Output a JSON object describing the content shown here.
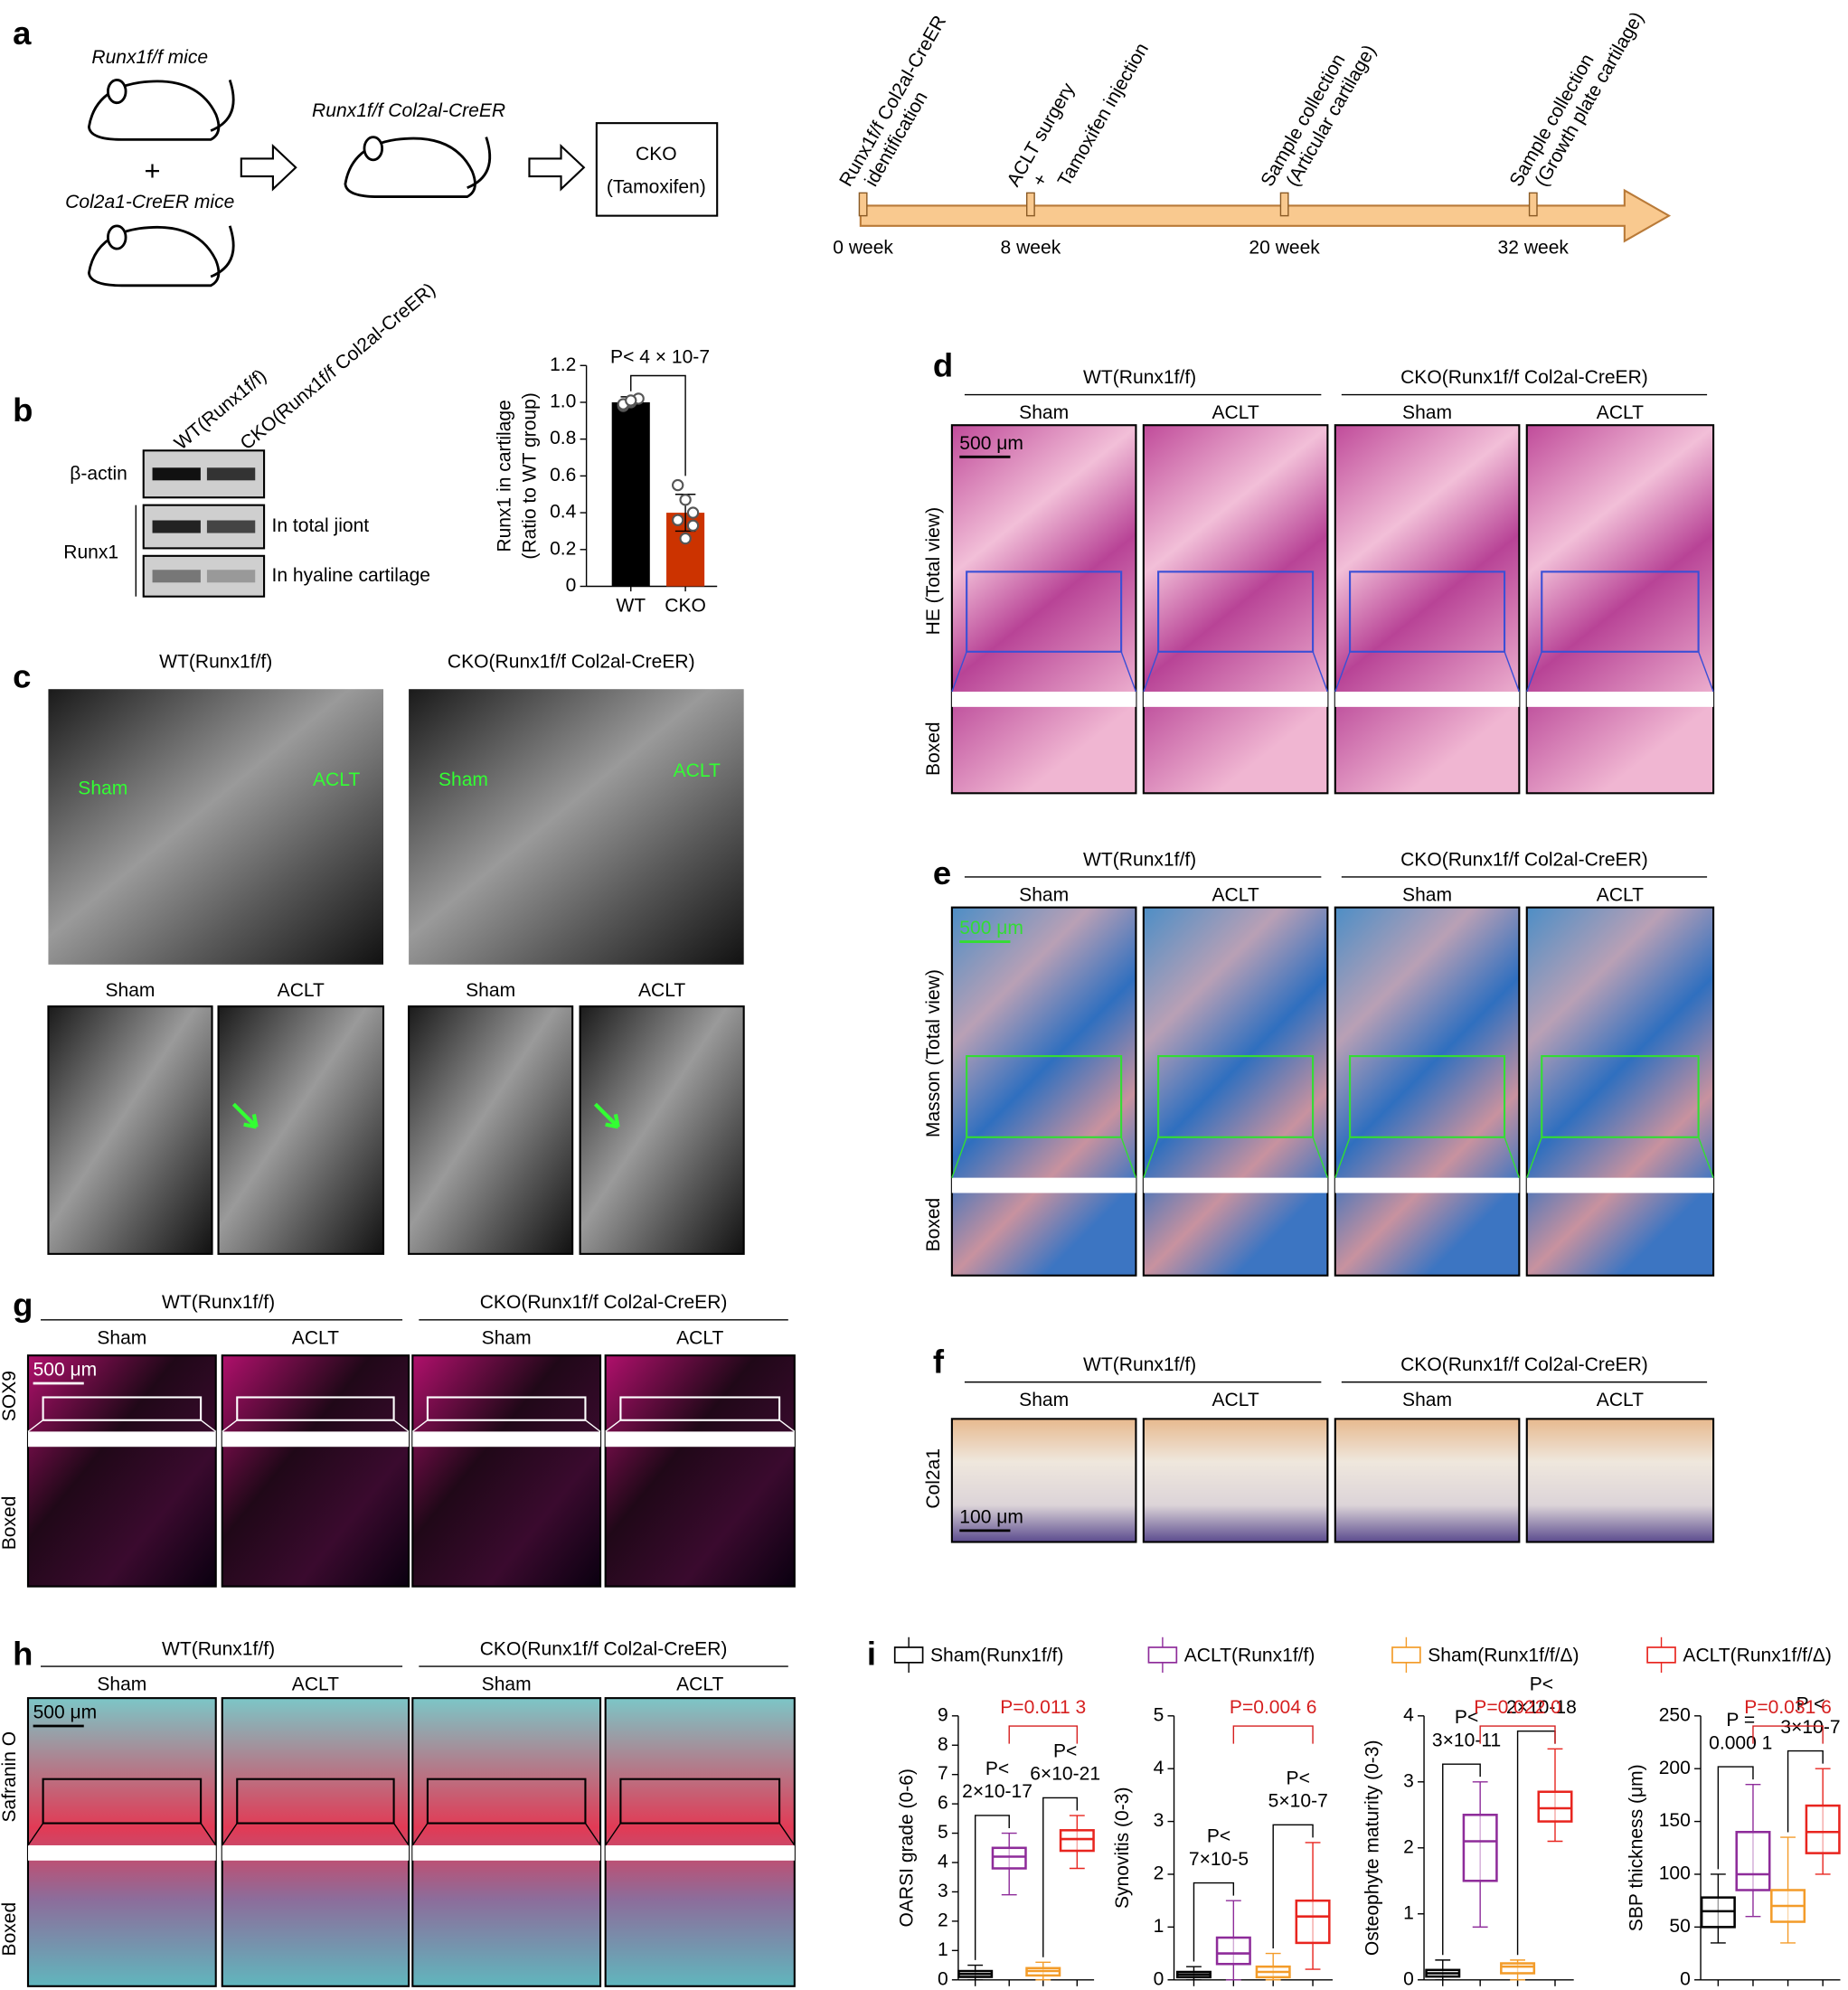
{
  "panel_labels": [
    "a",
    "b",
    "c",
    "d",
    "e",
    "f",
    "g",
    "h",
    "i"
  ],
  "panel_a": {
    "parent1": "Runx1f/f mice",
    "plus": "+",
    "parent2": "Col2a1-CreER mice",
    "offspring": "Runx1f/f Col2al-CreER",
    "cko_box": [
      "CKO",
      "(Tamoxifen)"
    ],
    "timeline": {
      "events": [
        [
          "Runx1f/f Col2al-CreER",
          "identification"
        ],
        [
          "ACLT surgery",
          "+",
          "Tamoxifen injection"
        ],
        [
          "Sample collection",
          "(Articular cartilage)"
        ],
        [
          "Sample collection",
          "(Growth plate cartilage)"
        ]
      ],
      "weeks": [
        "0 week",
        "8 week",
        "20 week",
        "32 week"
      ]
    }
  },
  "panel_b": {
    "lanes": [
      "WT(Runx1f/f)",
      "CKO(Runx1f/f Col2al-CreER)"
    ],
    "rows": [
      "β-actin",
      "Runx1"
    ],
    "row_notes": [
      "In total jiont",
      "In hyaline cartilage"
    ]
  },
  "panel_c": {
    "groups": [
      "WT(Runx1f/f)",
      "CKO(Runx1f/f Col2al-CreER)"
    ],
    "overlay": [
      "Sham",
      "ACLT"
    ],
    "columns": [
      "Sham",
      "ACLT",
      "Sham",
      "ACLT"
    ]
  },
  "panel_d": {
    "groups": [
      "WT(Runx1f/f)",
      "CKO(Runx1f/f Col2al-CreER)"
    ],
    "columns": [
      "Sham",
      "ACLT",
      "Sham",
      "ACLT"
    ],
    "rows": [
      "HE (Total view)",
      "Boxed"
    ],
    "scale_bar": "500 μm"
  },
  "panel_e": {
    "groups": [
      "WT(Runx1f/f)",
      "CKO(Runx1f/f Col2al-CreER)"
    ],
    "columns": [
      "Sham",
      "ACLT",
      "Sham",
      "ACLT"
    ],
    "rows": [
      "Masson (Total view)",
      "Boxed"
    ],
    "scale_bar": "500 μm"
  },
  "panel_f": {
    "groups": [
      "WT(Runx1f/f)",
      "CKO(Runx1f/f Col2al-CreER)"
    ],
    "columns": [
      "Sham",
      "ACLT",
      "Sham",
      "ACLT"
    ],
    "rows": [
      "Col2a1"
    ],
    "scale_bar": "100 μm"
  },
  "panel_g": {
    "groups": [
      "WT(Runx1f/f)",
      "CKO(Runx1f/f Col2al-CreER)"
    ],
    "columns": [
      "Sham",
      "ACLT",
      "Sham",
      "ACLT"
    ],
    "rows": [
      "SOX9",
      "Boxed"
    ],
    "scale_bar": "500 μm"
  },
  "panel_h": {
    "groups": [
      "WT(Runx1f/f)",
      "CKO(Runx1f/f Col2al-CreER)"
    ],
    "columns": [
      "Sham",
      "ACLT",
      "Sham",
      "ACLT"
    ],
    "rows": [
      "Safranin O",
      "Boxed"
    ],
    "scale_bar": "500 μm"
  },
  "panel_i": {
    "legend": [
      "Sham(Runx1f/f)",
      "ACLT(Runx1f/f)",
      "Sham(Runx1f/f/Δ)",
      "ACLT(Runx1f/f/Δ)"
    ]
  },
  "chart_data": [
    {
      "type": "bar",
      "ylabel": [
        "Runx1 in cartilage",
        "(Ratio to WT group)"
      ],
      "categories": [
        "WT",
        "CKO"
      ],
      "values": [
        1.0,
        0.4
      ],
      "errors": [
        0.03,
        0.1
      ],
      "colors": [
        "#000000",
        "#cc3300"
      ],
      "points": [
        [
          0.98,
          1.0,
          1.02,
          0.99,
          1.01
        ],
        [
          0.55,
          0.47,
          0.4,
          0.36,
          0.26,
          0.33
        ]
      ],
      "ylim": [
        0,
        1.2
      ],
      "yticks": [
        0,
        0.2,
        0.4,
        0.6,
        0.8,
        {
          "value": 1,
          "label": "1.0"
        },
        1.2
      ],
      "annotation": "P< 4 × 10-7"
    },
    {
      "type": "box",
      "ylabel": "OARSI grade (0-6)",
      "ylim": [
        0,
        9
      ],
      "yticks": [
        0,
        1,
        2,
        3,
        4,
        5,
        6,
        7,
        8,
        9
      ],
      "series": [
        {
          "color": "#000000",
          "min": 0,
          "q1": 0.1,
          "median": 0.2,
          "q3": 0.3,
          "max": 0.5
        },
        {
          "color": "#8e2c9a",
          "min": 2.9,
          "q1": 3.8,
          "median": 4.2,
          "q3": 4.5,
          "max": 5
        },
        {
          "color": "#f39c2a",
          "min": 0,
          "q1": 0.15,
          "median": 0.3,
          "q3": 0.4,
          "max": 0.6
        },
        {
          "color": "#e8251f",
          "min": 3.8,
          "q1": 4.4,
          "median": 4.8,
          "q3": 5.1,
          "max": 5.6
        }
      ],
      "annotations": [
        "P<",
        "2×10-17",
        "P<",
        "6×10-21",
        "P=0.011 3"
      ]
    },
    {
      "type": "box",
      "ylabel": "Synovitis (0-3)",
      "ylim": [
        0,
        5
      ],
      "yticks": [
        0,
        1,
        2,
        3,
        4,
        5
      ],
      "series": [
        {
          "color": "#000000",
          "min": 0,
          "q1": 0.05,
          "median": 0.1,
          "q3": 0.15,
          "max": 0.25
        },
        {
          "color": "#8e2c9a",
          "min": 0,
          "q1": 0.3,
          "median": 0.5,
          "q3": 0.8,
          "max": 1.5
        },
        {
          "color": "#f39c2a",
          "min": 0,
          "q1": 0.05,
          "median": 0.15,
          "q3": 0.25,
          "max": 0.5
        },
        {
          "color": "#e8251f",
          "min": 0.2,
          "q1": 0.7,
          "median": 1.2,
          "q3": 1.5,
          "max": 2.6
        }
      ],
      "annotations": [
        "P<",
        "7×10-5",
        "P<",
        "5×10-7",
        "P=0.004 6"
      ]
    },
    {
      "type": "box",
      "ylabel": "Osteophyte maturity (0-3)",
      "ylim": [
        0,
        4
      ],
      "yticks": [
        0,
        1,
        2,
        3,
        4
      ],
      "series": [
        {
          "color": "#000000",
          "min": 0,
          "q1": 0.05,
          "median": 0.1,
          "q3": 0.15,
          "max": 0.3
        },
        {
          "color": "#8e2c9a",
          "min": 0.8,
          "q1": 1.5,
          "median": 2.1,
          "q3": 2.5,
          "max": 3
        },
        {
          "color": "#f39c2a",
          "min": 0,
          "q1": 0.1,
          "median": 0.2,
          "q3": 0.25,
          "max": 0.3
        },
        {
          "color": "#e8251f",
          "min": 2.1,
          "q1": 2.4,
          "median": 2.6,
          "q3": 2.85,
          "max": 3.5
        }
      ],
      "annotations": [
        "P<",
        "3×10-11",
        "P<",
        "2×10-18",
        "P=0.022 0"
      ]
    },
    {
      "type": "box",
      "ylabel": "SBP thickness (μm)",
      "ylim": [
        0,
        250
      ],
      "yticks": [
        0,
        50,
        100,
        150,
        200,
        250
      ],
      "series": [
        {
          "color": "#000000",
          "min": 35,
          "q1": 50,
          "median": 65,
          "q3": 78,
          "max": 100
        },
        {
          "color": "#8e2c9a",
          "min": 60,
          "q1": 85,
          "median": 100,
          "q3": 140,
          "max": 185
        },
        {
          "color": "#f39c2a",
          "min": 35,
          "q1": 55,
          "median": 70,
          "q3": 85,
          "max": 135
        },
        {
          "color": "#e8251f",
          "min": 100,
          "q1": 120,
          "median": 140,
          "q3": 165,
          "max": 200
        }
      ],
      "annotations": [
        "P =",
        "0.000 1",
        "P <",
        "3×10-7",
        "P=0.031 6"
      ]
    }
  ]
}
